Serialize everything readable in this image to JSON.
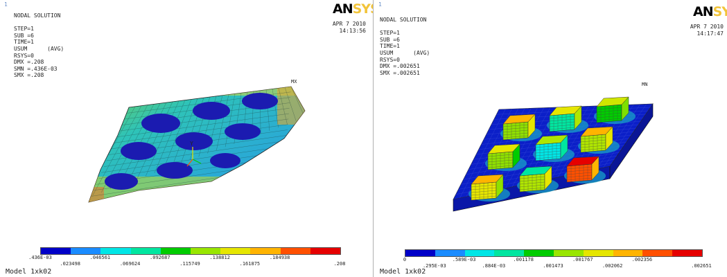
{
  "left": {
    "corner": "1",
    "header": [
      "NODAL SOLUTION",
      "",
      "STEP=1",
      "SUB =6",
      "TIME=1",
      "USUM      (AVG)",
      "RSYS=0",
      "DMX =.208",
      "SMN =.436E-03",
      "SMX =.208"
    ],
    "logo_an": "AN",
    "logo_sys": "SYS",
    "date": "APR  7 2010",
    "time": "14:13:56",
    "max_label": "MX",
    "axis_label": "Y",
    "legend_top": [
      ".436E-03",
      ".046561",
      ".092687",
      ".138812",
      ".184938"
    ],
    "legend_bottom": [
      ".023498",
      ".069624",
      ".115749",
      ".161875",
      ".208"
    ],
    "model": "Model 1xk02"
  },
  "right": {
    "corner": "1",
    "header": [
      "NODAL SOLUTION",
      "",
      "STEP=1",
      "SUB =6",
      "TIME=1",
      "USUM      (AVG)",
      "RSYS=0",
      "DMX =.002651",
      "SMX =.002651"
    ],
    "logo_an": "AN",
    "logo_sys": "SYS",
    "date": "APR  7 2010",
    "time": "14:17:47",
    "min_label": "MN",
    "legend_top": [
      "0",
      ".589E-03",
      ".001178",
      ".001767",
      ".002356"
    ],
    "legend_bottom": [
      ".295E-03",
      ".884E-03",
      ".001473",
      ".002062",
      ".002651"
    ],
    "model": "Model 1xk02"
  },
  "colors": {
    "legend": [
      "#0000c8",
      "#1a8cff",
      "#00e6e6",
      "#00e6a0",
      "#00cc00",
      "#99e600",
      "#e6e600",
      "#ffb400",
      "#ff5000",
      "#e60000"
    ],
    "plate_base": "#2bb5c9",
    "plate_blue": "#1b1bb0",
    "box_base": "#0b1fc8"
  }
}
